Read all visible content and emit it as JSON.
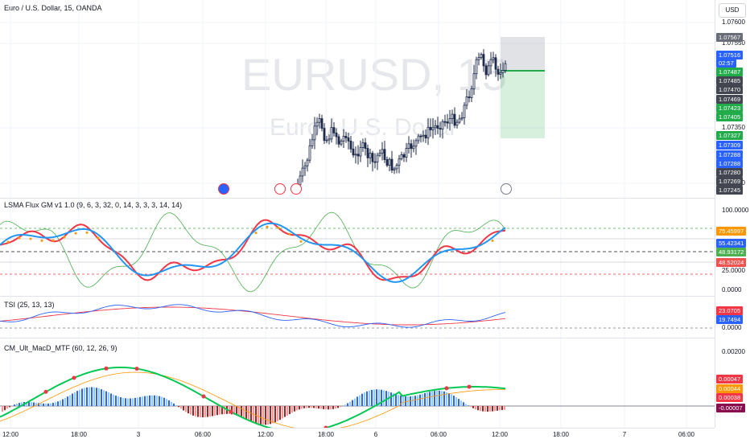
{
  "symbol": {
    "title": "Euro / U.S. Dollar, 15, OANDA",
    "watermark_main": "EURUSD, 15",
    "watermark_sub": "Euro / U.S. Dollar"
  },
  "currency_button": "USD",
  "price_axis": {
    "ticks": [
      "1.07600",
      "1.07550",
      "1.07350",
      "1.07200"
    ],
    "tags": [
      {
        "label": "1.07567",
        "color": "#6a6d78"
      },
      {
        "label": "1.07516",
        "color": "#2962ff"
      },
      {
        "label": "02:57",
        "color": "#2962ff"
      },
      {
        "label": "1.07487",
        "color": "#22ab4a"
      },
      {
        "label": "1.07485",
        "color": "#434651"
      },
      {
        "label": "1.07470",
        "color": "#434651"
      },
      {
        "label": "1.07469",
        "color": "#434651"
      },
      {
        "label": "1.07423",
        "color": "#22ab4a"
      },
      {
        "label": "1.07405",
        "color": "#22ab4a"
      },
      {
        "label": "1.07327",
        "color": "#22ab4a"
      },
      {
        "label": "1.07309",
        "color": "#2962ff"
      },
      {
        "label": "1.07288",
        "color": "#2962ff"
      },
      {
        "label": "1.07288",
        "color": "#2962ff"
      },
      {
        "label": "1.07280",
        "color": "#434651"
      },
      {
        "label": "1.07269",
        "color": "#434651"
      },
      {
        "label": "1.07245",
        "color": "#434651"
      }
    ]
  },
  "lsma_pane": {
    "legend": "LSMA Flux GM v1 1.0 (9, 6, 3, 32, 0, 14, 3, 3, 3, 14, 14)",
    "ticks": [
      "100.0000",
      "25.0000",
      "0.0000"
    ],
    "tags": [
      {
        "label": "75.45997",
        "color": "#ff9800"
      },
      {
        "label": "55.42341",
        "color": "#2962ff"
      },
      {
        "label": "48.93172",
        "color": "#4caf50"
      },
      {
        "label": "48.52024",
        "color": "#ef5350"
      }
    ]
  },
  "tsi_pane": {
    "legend": "TSI (25, 13, 13)",
    "ticks": [
      "0.0000"
    ],
    "tags": [
      {
        "label": "23.0705",
        "color": "#f23645"
      },
      {
        "label": "19.7494",
        "color": "#2962ff"
      }
    ]
  },
  "macd_pane": {
    "legend": "CM_Ult_MacD_MTF (60, 12, 26, 9)",
    "ticks": [
      "0.00200"
    ],
    "tags": [
      {
        "label": "0.00047",
        "color": "#f23645"
      },
      {
        "label": "0.00044",
        "color": "#ff9800"
      },
      {
        "label": "0.00038",
        "color": "#f23645"
      },
      {
        "label": "-0.00007",
        "color": "#880e4f"
      }
    ]
  },
  "time_axis": {
    "labels": [
      "12:00",
      "18:00",
      "3",
      "06:00",
      "12:00",
      "18:00",
      "6",
      "06:00",
      "12:00",
      "18:00",
      "7",
      "06:00"
    ]
  },
  "colors": {
    "bull": "#26a69a",
    "bear": "#131722",
    "candle": "#1e2a4a",
    "lsma_blue": "#2196f3",
    "lsma_red": "#f23645",
    "lsma_green": "#4caf50",
    "lsma_orange": "#ff9800",
    "tsi_blue": "#2962ff",
    "tsi_red": "#f23645",
    "macd_green": "#00e676",
    "macd_red": "#f23645"
  }
}
